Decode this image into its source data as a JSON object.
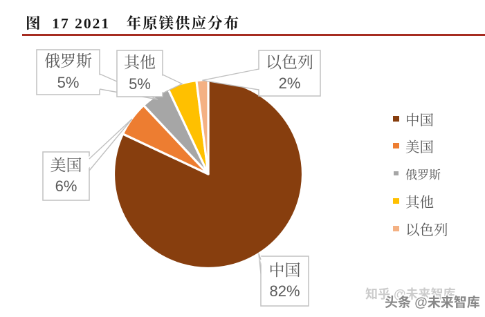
{
  "title": "图  17 2021　年原镁供应分布",
  "accent": {
    "rule_color": "#A62C21"
  },
  "chart_data": {
    "type": "pie",
    "title": "2021 年原镁供应分布",
    "categories": [
      "中国",
      "美国",
      "俄罗斯",
      "其他",
      "以色列"
    ],
    "values": [
      82,
      6,
      5,
      5,
      2
    ],
    "unit": "percent",
    "colors": [
      "#873E0E",
      "#ED7D31",
      "#A6A6A6",
      "#FFC000",
      "#F4B183"
    ],
    "start_angle_deg": 0,
    "direction": "clockwise",
    "legend_position": "right",
    "data_labels": [
      {
        "name": "中国",
        "value_label": "82%"
      },
      {
        "name": "美国",
        "value_label": "6%"
      },
      {
        "name": "俄罗斯",
        "value_label": "5%"
      },
      {
        "name": "其他",
        "value_label": "5%"
      },
      {
        "name": "以色列",
        "value_label": "2%"
      }
    ]
  },
  "callouts": {
    "russia": {
      "name": "俄罗斯",
      "pct": "5%"
    },
    "other": {
      "name": "其他",
      "pct": "5%"
    },
    "israel": {
      "name": "以色列",
      "pct": "2%"
    },
    "usa": {
      "name": "美国",
      "pct": "6%"
    },
    "china": {
      "name": "中国",
      "pct": "82%"
    }
  },
  "legend": {
    "items": [
      {
        "label": "中国"
      },
      {
        "label": "美国"
      },
      {
        "label": "俄罗斯"
      },
      {
        "label": "其他"
      },
      {
        "label": "以色列"
      }
    ]
  },
  "watermarks": {
    "back_text": "知乎 @未来智库",
    "front_text": "头条 @未来智库"
  }
}
